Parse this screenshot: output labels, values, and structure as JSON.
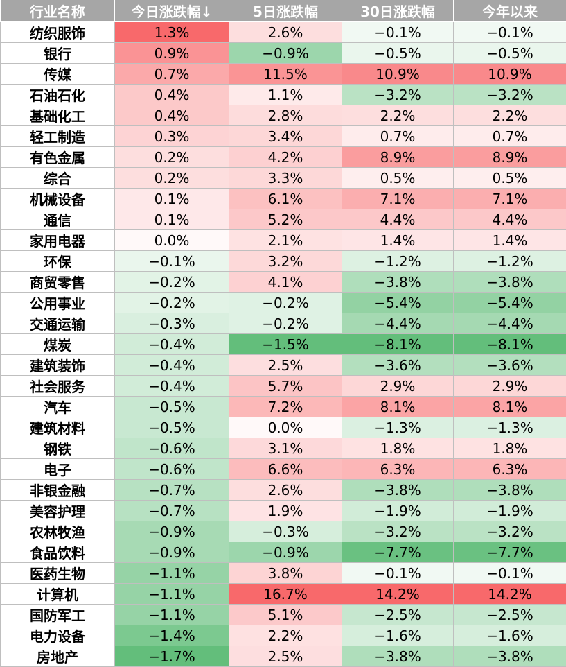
{
  "chart_data": {
    "type": "table",
    "columns": [
      "行业名称",
      "今日涨跌幅↓",
      "5日涨跌幅",
      "30日涨跌幅",
      "今年以来"
    ],
    "colors": {
      "positive": "#f8696b",
      "negative": "#63be7b",
      "neutral": "#ffffff"
    },
    "rows": [
      {
        "name": "纺织服饰",
        "values": [
          1.3,
          2.6,
          -0.1,
          -0.1
        ]
      },
      {
        "name": "银行",
        "values": [
          0.9,
          -0.9,
          -0.5,
          -0.5
        ]
      },
      {
        "name": "传媒",
        "values": [
          0.7,
          11.5,
          10.9,
          10.9
        ]
      },
      {
        "name": "石油石化",
        "values": [
          0.4,
          1.1,
          -3.2,
          -3.2
        ]
      },
      {
        "name": "基础化工",
        "values": [
          0.4,
          2.8,
          2.2,
          2.2
        ]
      },
      {
        "name": "轻工制造",
        "values": [
          0.3,
          3.4,
          0.7,
          0.7
        ]
      },
      {
        "name": "有色金属",
        "values": [
          0.2,
          4.2,
          8.9,
          8.9
        ]
      },
      {
        "name": "综合",
        "values": [
          0.2,
          3.3,
          0.5,
          0.5
        ]
      },
      {
        "name": "机械设备",
        "values": [
          0.1,
          6.1,
          7.1,
          7.1
        ]
      },
      {
        "name": "通信",
        "values": [
          0.1,
          5.2,
          4.4,
          4.4
        ]
      },
      {
        "name": "家用电器",
        "values": [
          0.0,
          2.1,
          1.4,
          1.4
        ]
      },
      {
        "name": "环保",
        "values": [
          -0.1,
          3.2,
          -1.2,
          -1.2
        ]
      },
      {
        "name": "商贸零售",
        "values": [
          -0.2,
          4.1,
          -3.8,
          -3.8
        ]
      },
      {
        "name": "公用事业",
        "values": [
          -0.2,
          -0.2,
          -5.4,
          -5.4
        ]
      },
      {
        "name": "交通运输",
        "values": [
          -0.3,
          -0.2,
          -4.4,
          -4.4
        ]
      },
      {
        "name": "煤炭",
        "values": [
          -0.4,
          -1.5,
          -8.1,
          -8.1
        ]
      },
      {
        "name": "建筑装饰",
        "values": [
          -0.4,
          2.5,
          -3.6,
          -3.6
        ]
      },
      {
        "name": "社会服务",
        "values": [
          -0.4,
          5.7,
          2.9,
          2.9
        ]
      },
      {
        "name": "汽车",
        "values": [
          -0.5,
          7.2,
          8.1,
          8.1
        ]
      },
      {
        "name": "建筑材料",
        "values": [
          -0.5,
          0.0,
          -1.3,
          -1.3
        ]
      },
      {
        "name": "钢铁",
        "values": [
          -0.6,
          3.1,
          1.8,
          1.8
        ]
      },
      {
        "name": "电子",
        "values": [
          -0.6,
          6.6,
          6.3,
          6.3
        ]
      },
      {
        "name": "非银金融",
        "values": [
          -0.7,
          2.6,
          -3.8,
          -3.8
        ]
      },
      {
        "name": "美容护理",
        "values": [
          -0.7,
          1.9,
          -1.9,
          -1.9
        ]
      },
      {
        "name": "农林牧渔",
        "values": [
          -0.9,
          -0.3,
          -3.2,
          -3.2
        ]
      },
      {
        "name": "食品饮料",
        "values": [
          -0.9,
          -0.9,
          -7.7,
          -7.7
        ]
      },
      {
        "name": "医药生物",
        "values": [
          -1.1,
          3.8,
          -0.1,
          -0.1
        ]
      },
      {
        "name": "计算机",
        "values": [
          -1.1,
          16.7,
          14.2,
          14.2
        ]
      },
      {
        "name": "国防军工",
        "values": [
          -1.1,
          5.1,
          -2.5,
          -2.5
        ]
      },
      {
        "name": "电力设备",
        "values": [
          -1.4,
          2.2,
          -1.6,
          -1.6
        ]
      },
      {
        "name": "房地产",
        "values": [
          -1.7,
          2.5,
          -3.8,
          -3.8
        ]
      }
    ]
  }
}
